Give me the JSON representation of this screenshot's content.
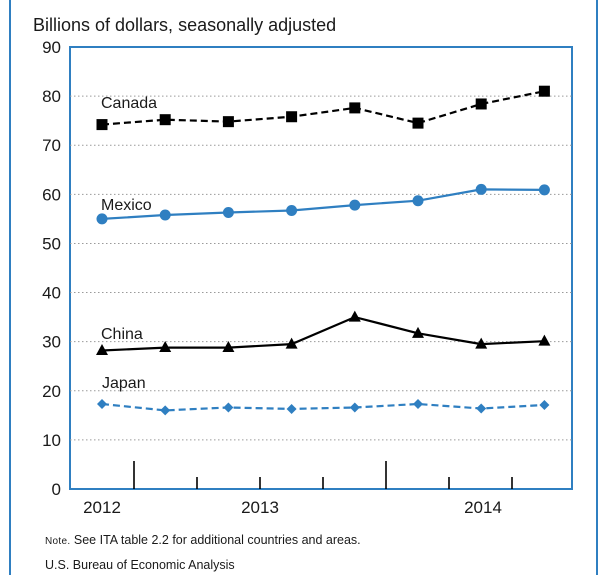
{
  "chart_data": {
    "type": "line",
    "title": "Billions of dollars, seasonally adjusted",
    "ylim": [
      0,
      90
    ],
    "yticks": [
      "0",
      "10",
      "20",
      "30",
      "40",
      "50",
      "60",
      "70",
      "80",
      "90"
    ],
    "x_tick_labels": [
      "2012",
      "2013",
      "2014"
    ],
    "x": [
      "2012 Q2",
      "2012 Q3",
      "2012 Q4",
      "2013 Q1",
      "2013 Q2",
      "2013 Q3",
      "2013 Q4",
      "2014 Q1"
    ],
    "grid": "horizontal dotted",
    "series": [
      {
        "name": "Canada",
        "marker": "square",
        "line": "dashed",
        "color": "#000000",
        "values": [
          74.2,
          75.2,
          74.8,
          75.8,
          77.6,
          74.5,
          78.4,
          81.0
        ]
      },
      {
        "name": "Mexico",
        "marker": "circle",
        "line": "solid",
        "color": "#2f7fc1",
        "values": [
          55.0,
          55.8,
          56.3,
          56.7,
          57.8,
          58.7,
          61.0,
          60.9
        ]
      },
      {
        "name": "China",
        "marker": "triangle",
        "line": "solid",
        "color": "#000000",
        "values": [
          28.2,
          28.8,
          28.8,
          29.5,
          35.0,
          31.7,
          29.5,
          30.1
        ]
      },
      {
        "name": "Japan",
        "marker": "diamond",
        "line": "dashed",
        "color": "#2f7fc1",
        "values": [
          17.3,
          16.0,
          16.6,
          16.3,
          16.6,
          17.3,
          16.4,
          17.1
        ]
      }
    ]
  },
  "footnote": {
    "note_label": "Note.",
    "note_text": " See ITA table 2.2 for additional countries and areas.",
    "source": "U.S. Bureau of Economic Analysis"
  },
  "colors": {
    "frame_blue": "#2f7fc1",
    "grid_gray": "#9a9a9a"
  }
}
